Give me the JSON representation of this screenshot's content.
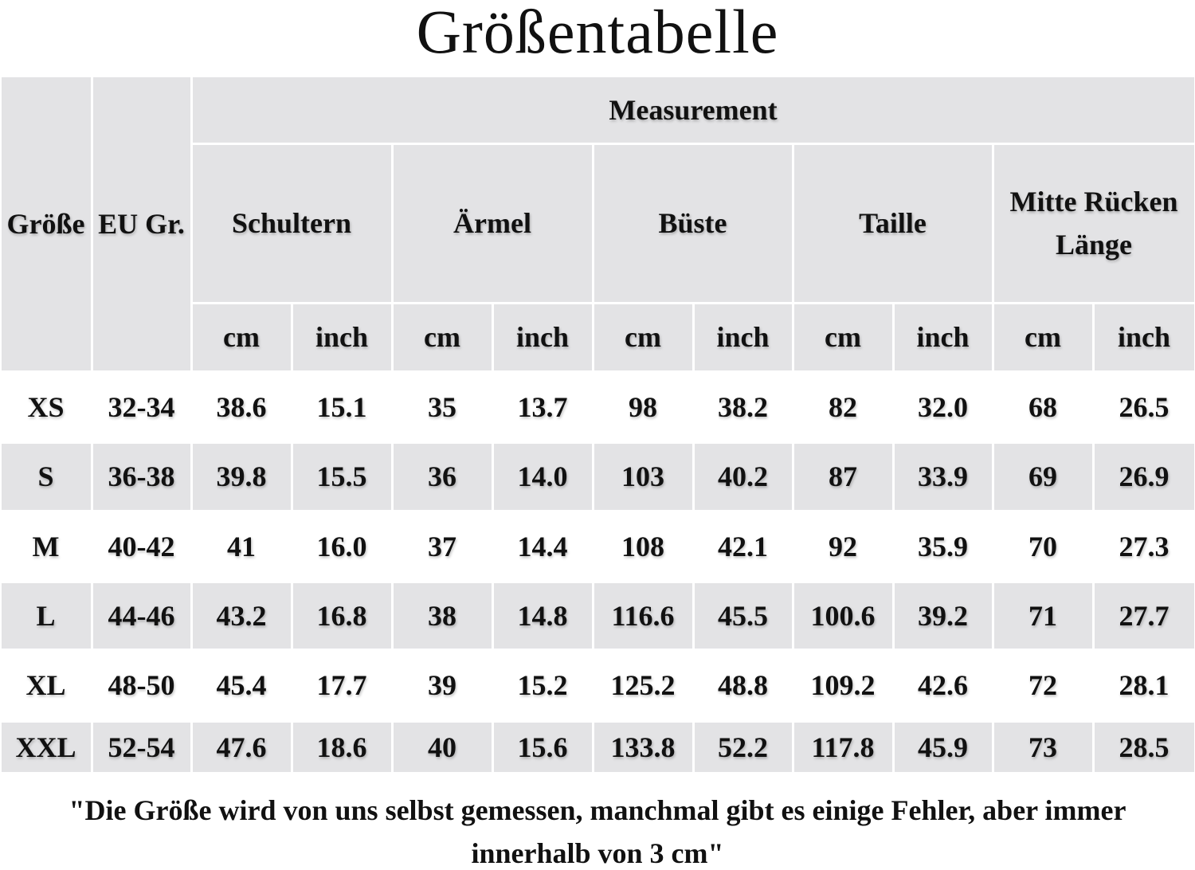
{
  "title": "Größentabelle",
  "table": {
    "header": {
      "size": "Größe",
      "eu": "EU Gr.",
      "measurement": "Measurement",
      "groups": [
        "Schultern",
        "Ärmel",
        "Büste",
        "Taille",
        "Mitte Rücken Länge"
      ],
      "units": [
        "cm",
        "inch",
        "cm",
        "inch",
        "cm",
        "inch",
        "cm",
        "inch",
        "cm",
        "inch"
      ]
    },
    "rows": [
      [
        "XS",
        "32-34",
        "38.6",
        "15.1",
        "35",
        "13.7",
        "98",
        "38.2",
        "82",
        "32.0",
        "68",
        "26.5"
      ],
      [
        "S",
        "36-38",
        "39.8",
        "15.5",
        "36",
        "14.0",
        "103",
        "40.2",
        "87",
        "33.9",
        "69",
        "26.9"
      ],
      [
        "M",
        "40-42",
        "41",
        "16.0",
        "37",
        "14.4",
        "108",
        "42.1",
        "92",
        "35.9",
        "70",
        "27.3"
      ],
      [
        "L",
        "44-46",
        "43.2",
        "16.8",
        "38",
        "14.8",
        "116.6",
        "45.5",
        "100.6",
        "39.2",
        "71",
        "27.7"
      ],
      [
        "XL",
        "48-50",
        "45.4",
        "17.7",
        "39",
        "15.2",
        "125.2",
        "48.8",
        "109.2",
        "42.6",
        "72",
        "28.1"
      ],
      [
        "XXL",
        "52-54",
        "47.6",
        "18.6",
        "40",
        "15.6",
        "133.8",
        "52.2",
        "117.8",
        "45.9",
        "73",
        "28.5"
      ]
    ]
  },
  "note": "\"Die Größe wird von uns selbst gemessen, manchmal gibt es einige Fehler, aber immer innerhalb von 3 cm\""
}
